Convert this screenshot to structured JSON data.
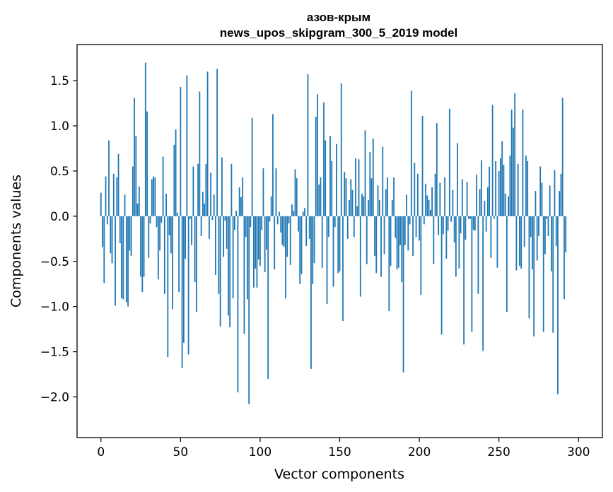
{
  "chart_data": {
    "type": "bar",
    "title": "азов-крым",
    "subtitle": "news_upos_skipgram_300_5_2019 model",
    "xlabel": "Vector components",
    "ylabel": "Components values",
    "xlim": [
      -15,
      315
    ],
    "ylim": [
      -2.45,
      1.9
    ],
    "xticks": [
      0,
      50,
      100,
      150,
      200,
      250,
      300
    ],
    "yticks": [
      -2.0,
      -1.5,
      -1.0,
      -0.5,
      0.0,
      0.5,
      1.0,
      1.5
    ],
    "ytick_labels": [
      "−2.0",
      "−1.5",
      "−1.0",
      "−0.5",
      "0.0",
      "0.5",
      "1.0",
      "1.5"
    ],
    "xtick_labels": [
      "0",
      "50",
      "100",
      "150",
      "200",
      "250",
      "300"
    ],
    "bar_color": "#1f77b4",
    "x": "0..299",
    "values": [
      0.26,
      -0.34,
      -0.74,
      0.44,
      -0.09,
      0.84,
      -0.41,
      -0.52,
      0.47,
      -0.99,
      0.43,
      0.69,
      -0.3,
      -0.91,
      -0.92,
      0.24,
      -0.95,
      -1.0,
      -0.38,
      -0.44,
      0.55,
      1.31,
      0.89,
      0.14,
      0.33,
      -0.67,
      -0.84,
      -0.67,
      1.7,
      1.16,
      -0.46,
      -0.08,
      0.41,
      0.44,
      0.43,
      -0.12,
      -0.7,
      -0.38,
      -0.07,
      0.66,
      -0.86,
      0.25,
      -1.56,
      -0.21,
      -0.41,
      -1.03,
      0.79,
      0.96,
      0.04,
      -0.84,
      1.43,
      -1.68,
      -1.4,
      -0.47,
      1.56,
      -1.53,
      -0.03,
      -0.32,
      0.55,
      -0.73,
      -1.06,
      0.58,
      1.38,
      -0.22,
      0.27,
      0.14,
      0.58,
      1.6,
      -0.25,
      0.48,
      -0.04,
      0.24,
      -0.65,
      1.63,
      -0.86,
      -1.22,
      0.65,
      -0.45,
      -0.05,
      -0.36,
      -1.1,
      -1.23,
      0.58,
      -0.91,
      -0.15,
      0.06,
      -1.95,
      0.32,
      0.21,
      0.43,
      -1.3,
      -0.23,
      -0.92,
      -2.08,
      -0.12,
      1.09,
      -0.79,
      -0.58,
      -0.79,
      -0.48,
      -0.55,
      -0.15,
      0.53,
      -0.62,
      -0.37,
      -1.8,
      -0.06,
      0.22,
      1.13,
      -0.59,
      0.53,
      -0.09,
      0.05,
      -0.18,
      -0.32,
      -0.34,
      -0.91,
      -0.45,
      -0.08,
      -0.54,
      0.13,
      0.06,
      0.52,
      0.42,
      -0.17,
      -0.75,
      -0.64,
      0.05,
      0.09,
      -0.33,
      1.57,
      -0.25,
      -1.69,
      -0.75,
      -0.52,
      1.1,
      1.35,
      0.35,
      0.43,
      -0.57,
      1.26,
      0.84,
      -0.97,
      -0.23,
      0.89,
      0.61,
      -0.78,
      -0.12,
      0.8,
      -0.63,
      -0.61,
      1.47,
      -1.16,
      0.49,
      0.42,
      -0.25,
      0.18,
      0.41,
      0.29,
      -0.23,
      0.64,
      0.11,
      0.63,
      -0.89,
      0.25,
      0.22,
      0.95,
      -0.53,
      0.18,
      0.71,
      0.42,
      0.86,
      -0.44,
      -0.63,
      0.34,
      0.18,
      -0.67,
      0.77,
      -0.42,
      0.3,
      0.43,
      -1.05,
      -0.55,
      0.18,
      0.43,
      -0.24,
      -0.59,
      -0.57,
      -0.32,
      -0.73,
      -1.73,
      -0.32,
      0.24,
      -0.38,
      -0.09,
      1.39,
      -0.44,
      0.59,
      -0.23,
      0.47,
      -0.27,
      -0.87,
      1.11,
      -0.09,
      0.36,
      0.23,
      0.18,
      0.07,
      0.32,
      -0.53,
      0.47,
      1.03,
      -0.21,
      0.37,
      -1.31,
      -0.2,
      0.43,
      -0.47,
      -0.16,
      1.19,
      -0.06,
      0.29,
      -0.29,
      -0.67,
      0.81,
      -0.58,
      -0.19,
      0.41,
      -1.42,
      -0.26,
      0.38,
      -0.03,
      -0.03,
      -1.28,
      -0.15,
      -0.16,
      0.46,
      -0.86,
      0.3,
      0.62,
      -1.49,
      0.17,
      -0.17,
      0.32,
      0.55,
      -0.46,
      1.23,
      -0.03,
      0.61,
      -0.57,
      0.5,
      0.64,
      0.83,
      0.57,
      0.25,
      -1.06,
      0.22,
      0.67,
      1.18,
      0.98,
      1.36,
      -0.6,
      0.58,
      -0.55,
      -0.58,
      1.18,
      -0.34,
      0.67,
      0.61,
      -1.13,
      -0.23,
      -0.59,
      -1.33,
      0.28,
      -0.49,
      -0.22,
      0.55,
      0.37,
      -1.28,
      -0.42,
      -0.03,
      -0.22,
      0.34,
      -0.61,
      -1.29,
      0.51,
      -0.33,
      -1.97,
      0.28,
      0.47,
      1.31,
      -0.92,
      -0.4
    ]
  }
}
